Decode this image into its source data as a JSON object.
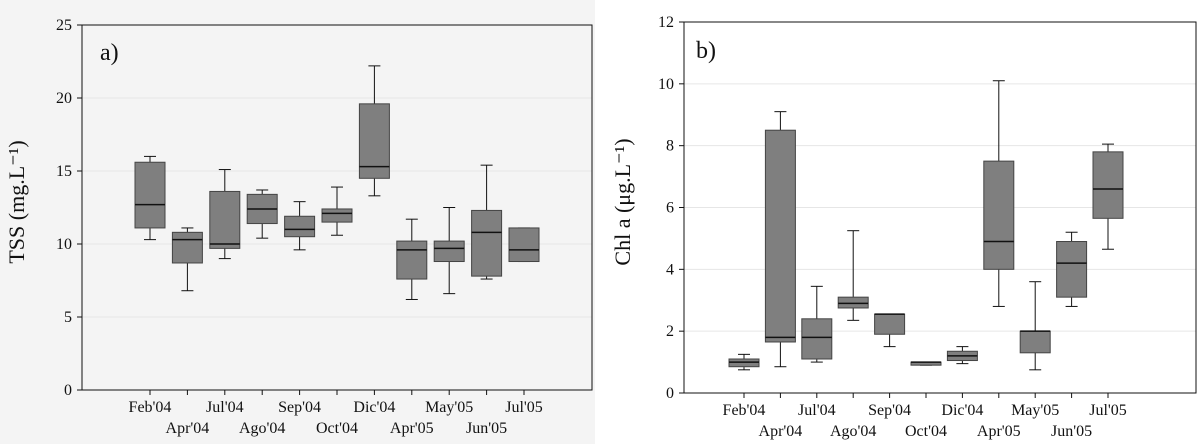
{
  "chart_data": [
    {
      "type": "box",
      "panel_label": "a)",
      "ylabel": "TSS (mg.L⁻¹)",
      "ylim": [
        0,
        25
      ],
      "yticks": [
        0,
        5,
        10,
        15,
        20,
        25
      ],
      "grid": true,
      "categories": [
        "Feb'04",
        "Apr'04",
        "Jul'04",
        "Ago'04",
        "Sep'04",
        "Oct'04",
        "Dic'04",
        "Apr'05",
        "May'05",
        "Jun'05",
        "Jul'05"
      ],
      "boxes": [
        {
          "min": 10.3,
          "q1": 11.1,
          "median": 12.7,
          "q3": 15.6,
          "max": 16.0
        },
        {
          "min": 6.8,
          "q1": 8.7,
          "median": 10.3,
          "q3": 10.8,
          "max": 11.1
        },
        {
          "min": 9.0,
          "q1": 9.7,
          "median": 10.0,
          "q3": 13.6,
          "max": 15.1
        },
        {
          "min": 10.4,
          "q1": 11.4,
          "median": 12.4,
          "q3": 13.4,
          "max": 13.7
        },
        {
          "min": 9.6,
          "q1": 10.5,
          "median": 11.0,
          "q3": 11.9,
          "max": 12.9
        },
        {
          "min": 10.6,
          "q1": 11.5,
          "median": 12.1,
          "q3": 12.4,
          "max": 13.9
        },
        {
          "min": 13.3,
          "q1": 14.5,
          "median": 15.3,
          "q3": 19.6,
          "max": 22.2
        },
        {
          "min": 6.2,
          "q1": 7.6,
          "median": 9.6,
          "q3": 10.2,
          "max": 11.7
        },
        {
          "min": 6.6,
          "q1": 8.8,
          "median": 9.7,
          "q3": 10.2,
          "max": 12.5
        },
        {
          "min": 7.6,
          "q1": 7.8,
          "median": 10.8,
          "q3": 12.3,
          "max": 15.4
        },
        {
          "min": 8.8,
          "q1": 8.8,
          "median": 9.6,
          "q3": 11.1,
          "max": 11.1
        }
      ]
    },
    {
      "type": "box",
      "panel_label": "b)",
      "ylabel": "Chl a (μg.L⁻¹)",
      "ylim": [
        0,
        12
      ],
      "yticks": [
        0,
        2,
        4,
        6,
        8,
        10,
        12
      ],
      "grid": true,
      "categories": [
        "Feb'04",
        "Apr'04",
        "Jul'04",
        "Ago'04",
        "Sep'04",
        "Oct'04",
        "Dic'04",
        "Apr'05",
        "May'05",
        "Jun'05",
        "Jul'05"
      ],
      "boxes": [
        {
          "min": 0.75,
          "q1": 0.85,
          "median": 1.0,
          "q3": 1.1,
          "max": 1.25
        },
        {
          "min": 0.85,
          "q1": 1.65,
          "median": 1.8,
          "q3": 8.5,
          "max": 9.1
        },
        {
          "min": 1.0,
          "q1": 1.1,
          "median": 1.8,
          "q3": 2.4,
          "max": 3.45
        },
        {
          "min": 2.35,
          "q1": 2.75,
          "median": 2.9,
          "q3": 3.1,
          "max": 5.25
        },
        {
          "min": 1.5,
          "q1": 1.9,
          "median": 2.55,
          "q3": 2.55,
          "max": 2.55
        },
        {
          "min": 0.9,
          "q1": 0.9,
          "median": 1.0,
          "q3": 1.0,
          "max": 1.0
        },
        {
          "min": 0.95,
          "q1": 1.05,
          "median": 1.2,
          "q3": 1.35,
          "max": 1.5
        },
        {
          "min": 2.8,
          "q1": 4.0,
          "median": 4.9,
          "q3": 7.5,
          "max": 10.1
        },
        {
          "min": 0.75,
          "q1": 1.3,
          "median": 2.0,
          "q3": 2.0,
          "max": 3.6
        },
        {
          "min": 2.8,
          "q1": 3.1,
          "median": 4.2,
          "q3": 4.9,
          "max": 5.2
        },
        {
          "min": 4.65,
          "q1": 5.65,
          "median": 6.6,
          "q3": 7.8,
          "max": 8.05
        }
      ]
    }
  ],
  "style": {
    "box_fill": "#7f7f7f",
    "box_stroke": "#444444",
    "whisker_color": "#111111",
    "grid_color": "#e6e6e6",
    "axis_color": "#111111"
  }
}
